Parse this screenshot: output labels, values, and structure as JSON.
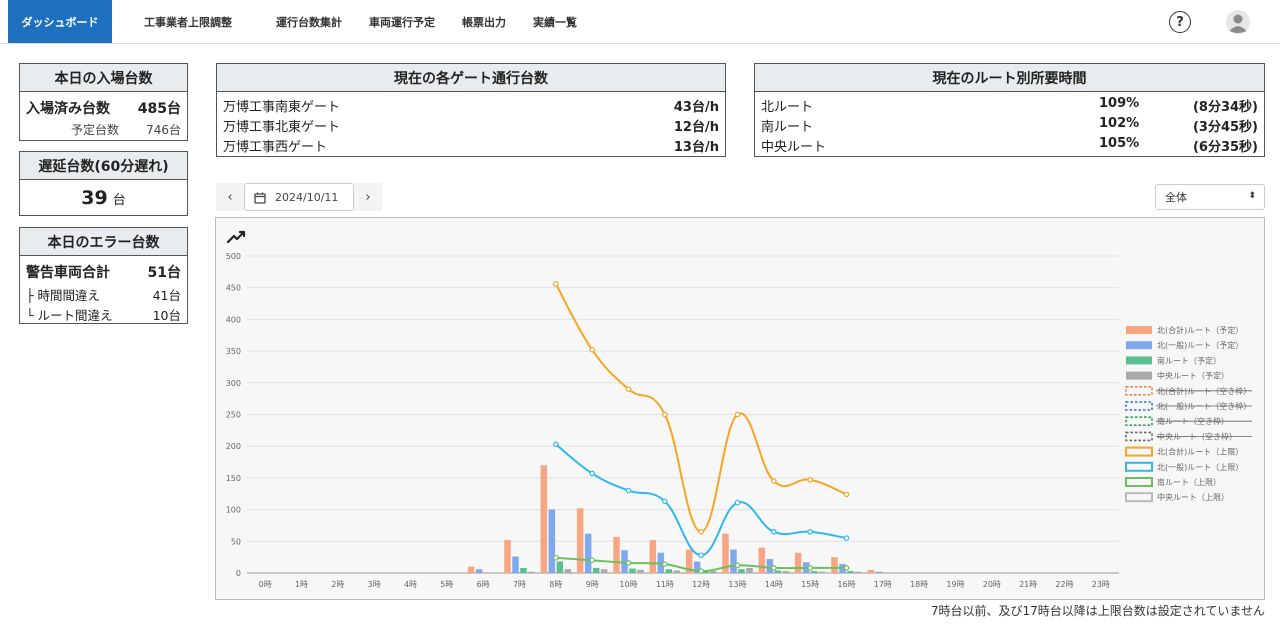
{
  "nav": {
    "brand": "ダッシュボード",
    "items": [
      "工事業者上限調整",
      "運行台数集計",
      "車両運行予定",
      "帳票出力",
      "実績一覧"
    ],
    "help": "?"
  },
  "entry": {
    "title": "本日の入場台数",
    "entered_label": "入場済み台数",
    "entered_value": "485台",
    "planned_label": "予定台数",
    "planned_value": "746台"
  },
  "delay": {
    "title": "遅延台数(60分遅れ)",
    "value": "39",
    "unit": "台"
  },
  "errors": {
    "title": "本日のエラー台数",
    "total_label": "警告車両合計",
    "total_value": "51台",
    "time_label": "├ 時間間違え",
    "time_value": "41台",
    "route_label": "└ ルート間違え",
    "route_value": "10台"
  },
  "gates": {
    "title": "現在の各ゲート通行台数",
    "rows": [
      {
        "name": "万博工事南東ゲート",
        "value": "43台/h"
      },
      {
        "name": "万博工事北東ゲート",
        "value": "12台/h"
      },
      {
        "name": "万博工事西ゲート",
        "value": "13台/h"
      }
    ]
  },
  "routes": {
    "title": "現在のルート別所要時間",
    "rows": [
      {
        "name": "北ルート",
        "pct": "109%",
        "time": "(8分34秒)"
      },
      {
        "name": "南ルート",
        "pct": "102%",
        "time": "(3分45秒)"
      },
      {
        "name": "中央ルート",
        "pct": "105%",
        "time": "(6分35秒)"
      }
    ]
  },
  "datebar": {
    "prev": "‹",
    "next": "›",
    "date": "2024/10/11"
  },
  "filter": {
    "selected": "全体"
  },
  "footnote": "7時台以前、及び17時台以降は上限台数は設定されていません",
  "colors": {
    "accent": "#1f6fbf"
  },
  "chart_data": {
    "type": "bar",
    "categories": [
      "0時",
      "1時",
      "2時",
      "3時",
      "4時",
      "5時",
      "6時",
      "7時",
      "8時",
      "9時",
      "10時",
      "11時",
      "12時",
      "13時",
      "14時",
      "15時",
      "16時",
      "17時",
      "18時",
      "19時",
      "20時",
      "21時",
      "22時",
      "23時"
    ],
    "ylim": [
      0,
      500
    ],
    "yticks": [
      0,
      50,
      100,
      150,
      200,
      250,
      300,
      350,
      400,
      450,
      500
    ],
    "grid": true,
    "legend_position": "right",
    "bars": [
      {
        "name": "北(合計)ルート（予定）",
        "color": "#f7a582",
        "values": [
          0,
          0,
          0,
          0,
          0,
          0,
          10,
          52,
          170,
          102,
          57,
          52,
          37,
          62,
          40,
          32,
          25,
          5,
          0,
          0,
          0,
          0,
          0,
          0
        ]
      },
      {
        "name": "北(一般)ルート（予定）",
        "color": "#7fa8f0",
        "values": [
          0,
          0,
          0,
          0,
          0,
          0,
          6,
          26,
          100,
          62,
          36,
          32,
          18,
          37,
          22,
          17,
          14,
          2,
          0,
          0,
          0,
          0,
          0,
          0
        ]
      },
      {
        "name": "南ルート（予定）",
        "color": "#5dbf8f",
        "values": [
          0,
          0,
          0,
          0,
          0,
          0,
          0,
          8,
          18,
          8,
          7,
          6,
          4,
          6,
          4,
          3,
          3,
          0,
          0,
          0,
          0,
          0,
          0,
          0
        ]
      },
      {
        "name": "中央ルート（予定）",
        "color": "#aaaaaa",
        "values": [
          0,
          0,
          0,
          0,
          0,
          0,
          0,
          2,
          6,
          6,
          5,
          4,
          3,
          8,
          3,
          2,
          2,
          0,
          0,
          0,
          0,
          0,
          0,
          0
        ]
      }
    ],
    "hidden_series": [
      {
        "name": "北(合計)ルート（空き枠）",
        "color": "#e8823f"
      },
      {
        "name": "北(一般)ルート（空き枠）",
        "color": "#2f6fde"
      },
      {
        "name": "南ルート（空き枠）",
        "color": "#2e9e5c"
      },
      {
        "name": "中央ルート（空き枠）",
        "color": "#666666"
      }
    ],
    "lines": [
      {
        "name": "北(合計)ルート（上限）",
        "color": "#f5a623",
        "x": [
          8,
          9,
          10,
          11,
          12,
          13,
          14,
          15,
          16
        ],
        "values": [
          456,
          352,
          290,
          250,
          65,
          250,
          145,
          147,
          124
        ]
      },
      {
        "name": "北(一般)ルート（上限）",
        "color": "#30b8ec",
        "x": [
          8,
          9,
          10,
          11,
          12,
          13,
          14,
          15,
          16
        ],
        "values": [
          203,
          157,
          130,
          113,
          28,
          111,
          65,
          65,
          55
        ]
      },
      {
        "name": "南ルート（上限）",
        "color": "#6cbf5d",
        "x": [
          8,
          9,
          10,
          11,
          12,
          13,
          14,
          15,
          16
        ],
        "values": [
          24,
          20,
          16,
          14,
          3,
          12,
          8,
          8,
          8
        ]
      },
      {
        "name": "中央ルート（上限）",
        "color": "#bbbbbb",
        "x": [
          8,
          9,
          10,
          11,
          12,
          13,
          14,
          15,
          16
        ],
        "values": [
          0,
          0,
          0,
          0,
          0,
          0,
          0,
          0,
          0
        ]
      }
    ]
  }
}
